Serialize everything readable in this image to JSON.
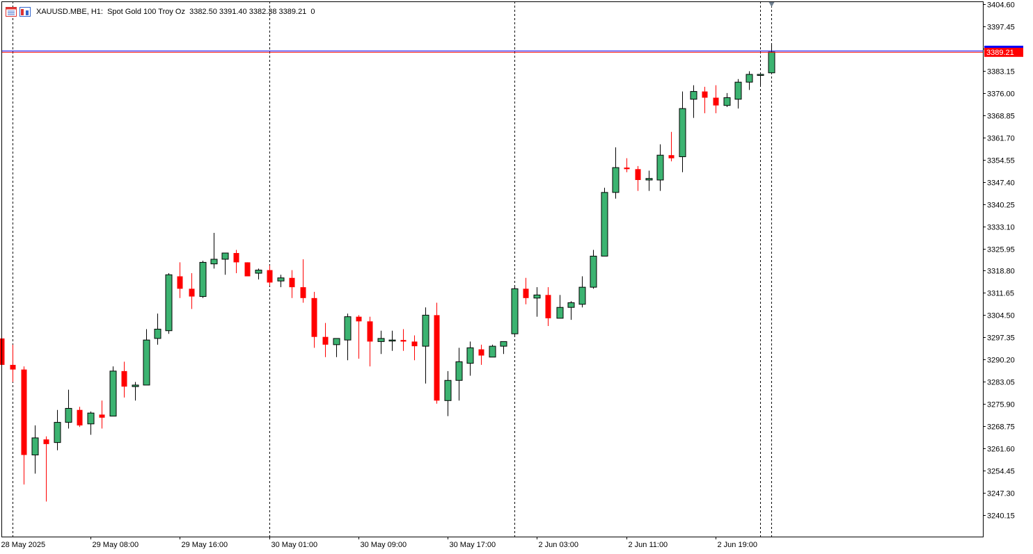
{
  "header": {
    "symbol_line": "XAUUSD.MBE, H1:  Spot Gold 100 Troy Oz  3382.50 3391.40 3382.38 3389.21  0",
    "icons": [
      "chart-window-icon",
      "trade-panel-icon"
    ]
  },
  "colors": {
    "bull": "#3cb371",
    "bear": "#ff0000",
    "outline": "#000000",
    "price_line": "#0000ff",
    "price_line2": "#ff0000",
    "price_tag_bg": "#ff0000",
    "price_tag_text": "#ffffff",
    "grid_separator": "#000000"
  },
  "chart_data": {
    "type": "candlestick",
    "title": "XAUUSD.MBE, H1:  Spot Gold 100 Troy Oz",
    "ylim": [
      3233.5,
      3404.6
    ],
    "y_ticks": [
      "3404.60",
      "3397.45",
      "3390.30",
      "3383.15",
      "3376.00",
      "3368.85",
      "3361.70",
      "3354.55",
      "3347.40",
      "3340.25",
      "3333.10",
      "3325.95",
      "3318.80",
      "3311.65",
      "3304.50",
      "3297.35",
      "3290.20",
      "3283.05",
      "3275.90",
      "3268.75",
      "3261.60",
      "3254.45",
      "3247.30",
      "3240.15"
    ],
    "x_labels": [
      {
        "label": "28 May 2025",
        "index": -0.2
      },
      {
        "label": "29 May 08:00",
        "index": 8
      },
      {
        "label": "29 May 16:00",
        "index": 16
      },
      {
        "label": "30 May 01:00",
        "index": 24
      },
      {
        "label": "30 May 09:00",
        "index": 32
      },
      {
        "label": "30 May 17:00",
        "index": 40
      },
      {
        "label": "2 Jun 03:00",
        "index": 48
      },
      {
        "label": "2 Jun 11:00",
        "index": 56
      },
      {
        "label": "2 Jun 19:00",
        "index": 64
      }
    ],
    "day_separators": [
      1,
      24,
      46,
      68
    ],
    "current_price": "3389.21",
    "candles": [
      {
        "o": 3297.0,
        "h": 3297.5,
        "l": 3288.5,
        "c": 3288.5
      },
      {
        "o": 3288.5,
        "h": 3295.0,
        "l": 3283.0,
        "c": 3287.0
      },
      {
        "o": 3287.0,
        "h": 3288.0,
        "l": 3250.0,
        "c": 3259.5
      },
      {
        "o": 3259.5,
        "h": 3269.0,
        "l": 3253.5,
        "c": 3265.0
      },
      {
        "o": 3264.5,
        "h": 3265.5,
        "l": 3244.5,
        "c": 3263.0
      },
      {
        "o": 3263.5,
        "h": 3274.0,
        "l": 3261.0,
        "c": 3270.0
      },
      {
        "o": 3270.0,
        "h": 3280.5,
        "l": 3268.0,
        "c": 3274.5
      },
      {
        "o": 3274.0,
        "h": 3275.0,
        "l": 3268.5,
        "c": 3269.0
      },
      {
        "o": 3269.5,
        "h": 3273.5,
        "l": 3266.0,
        "c": 3273.0
      },
      {
        "o": 3272.5,
        "h": 3277.0,
        "l": 3268.0,
        "c": 3271.5
      },
      {
        "o": 3272.0,
        "h": 3288.0,
        "l": 3272.0,
        "c": 3286.5
      },
      {
        "o": 3286.5,
        "h": 3289.5,
        "l": 3278.0,
        "c": 3281.5
      },
      {
        "o": 3281.5,
        "h": 3283.0,
        "l": 3277.0,
        "c": 3282.0
      },
      {
        "o": 3282.0,
        "h": 3300.0,
        "l": 3282.0,
        "c": 3296.5
      },
      {
        "o": 3297.0,
        "h": 3305.0,
        "l": 3295.0,
        "c": 3300.0
      },
      {
        "o": 3299.5,
        "h": 3318.0,
        "l": 3298.5,
        "c": 3317.5
      },
      {
        "o": 3317.0,
        "h": 3321.5,
        "l": 3310.0,
        "c": 3313.0
      },
      {
        "o": 3313.0,
        "h": 3318.0,
        "l": 3306.5,
        "c": 3310.5
      },
      {
        "o": 3310.5,
        "h": 3322.0,
        "l": 3310.0,
        "c": 3321.5
      },
      {
        "o": 3321.0,
        "h": 3331.0,
        "l": 3319.5,
        "c": 3322.5
      },
      {
        "o": 3322.5,
        "h": 3324.5,
        "l": 3317.5,
        "c": 3324.5
      },
      {
        "o": 3324.5,
        "h": 3325.5,
        "l": 3318.0,
        "c": 3321.5
      },
      {
        "o": 3321.5,
        "h": 3321.5,
        "l": 3317.0,
        "c": 3317.0
      },
      {
        "o": 3318.0,
        "h": 3319.5,
        "l": 3316.0,
        "c": 3319.0
      },
      {
        "o": 3319.0,
        "h": 3320.5,
        "l": 3314.0,
        "c": 3315.0
      },
      {
        "o": 3315.5,
        "h": 3317.5,
        "l": 3313.5,
        "c": 3316.5
      },
      {
        "o": 3316.5,
        "h": 3319.0,
        "l": 3310.0,
        "c": 3313.5
      },
      {
        "o": 3313.5,
        "h": 3322.5,
        "l": 3308.5,
        "c": 3310.0
      },
      {
        "o": 3310.0,
        "h": 3312.0,
        "l": 3294.0,
        "c": 3297.5
      },
      {
        "o": 3297.5,
        "h": 3302.0,
        "l": 3291.0,
        "c": 3295.0
      },
      {
        "o": 3295.0,
        "h": 3297.0,
        "l": 3291.0,
        "c": 3297.0
      },
      {
        "o": 3296.5,
        "h": 3305.0,
        "l": 3290.0,
        "c": 3304.0
      },
      {
        "o": 3304.0,
        "h": 3304.5,
        "l": 3290.5,
        "c": 3302.5
      },
      {
        "o": 3302.5,
        "h": 3304.0,
        "l": 3288.0,
        "c": 3296.0
      },
      {
        "o": 3296.0,
        "h": 3299.5,
        "l": 3292.0,
        "c": 3297.0
      },
      {
        "o": 3296.5,
        "h": 3299.5,
        "l": 3293.0,
        "c": 3296.5
      },
      {
        "o": 3296.5,
        "h": 3300.0,
        "l": 3293.0,
        "c": 3296.0
      },
      {
        "o": 3296.0,
        "h": 3298.0,
        "l": 3290.0,
        "c": 3294.5
      },
      {
        "o": 3294.5,
        "h": 3307.0,
        "l": 3282.5,
        "c": 3304.5
      },
      {
        "o": 3304.5,
        "h": 3308.5,
        "l": 3276.0,
        "c": 3277.0
      },
      {
        "o": 3277.0,
        "h": 3286.5,
        "l": 3272.0,
        "c": 3283.5
      },
      {
        "o": 3283.5,
        "h": 3294.0,
        "l": 3277.0,
        "c": 3289.5
      },
      {
        "o": 3289.0,
        "h": 3296.0,
        "l": 3285.0,
        "c": 3294.0
      },
      {
        "o": 3293.5,
        "h": 3295.0,
        "l": 3288.5,
        "c": 3291.5
      },
      {
        "o": 3291.0,
        "h": 3295.0,
        "l": 3291.0,
        "c": 3294.5
      },
      {
        "o": 3294.5,
        "h": 3296.0,
        "l": 3292.0,
        "c": 3296.0
      },
      {
        "o": 3298.5,
        "h": 3314.0,
        "l": 3297.5,
        "c": 3313.0
      },
      {
        "o": 3313.0,
        "h": 3316.5,
        "l": 3308.0,
        "c": 3310.0
      },
      {
        "o": 3310.0,
        "h": 3313.5,
        "l": 3304.0,
        "c": 3311.0
      },
      {
        "o": 3311.0,
        "h": 3313.5,
        "l": 3301.0,
        "c": 3303.5
      },
      {
        "o": 3303.5,
        "h": 3311.0,
        "l": 3303.5,
        "c": 3307.0
      },
      {
        "o": 3307.0,
        "h": 3309.0,
        "l": 3303.0,
        "c": 3308.5
      },
      {
        "o": 3308.0,
        "h": 3317.0,
        "l": 3307.0,
        "c": 3313.5
      },
      {
        "o": 3313.5,
        "h": 3325.5,
        "l": 3313.0,
        "c": 3323.5
      },
      {
        "o": 3323.5,
        "h": 3345.5,
        "l": 3323.5,
        "c": 3344.0
      },
      {
        "o": 3344.0,
        "h": 3358.5,
        "l": 3342.0,
        "c": 3352.0
      },
      {
        "o": 3352.0,
        "h": 3355.0,
        "l": 3350.5,
        "c": 3351.5
      },
      {
        "o": 3351.5,
        "h": 3352.5,
        "l": 3344.5,
        "c": 3348.0
      },
      {
        "o": 3348.0,
        "h": 3351.0,
        "l": 3344.5,
        "c": 3348.5
      },
      {
        "o": 3348.0,
        "h": 3359.5,
        "l": 3344.5,
        "c": 3356.0
      },
      {
        "o": 3356.0,
        "h": 3363.5,
        "l": 3354.0,
        "c": 3355.0
      },
      {
        "o": 3355.5,
        "h": 3376.5,
        "l": 3350.5,
        "c": 3371.0
      },
      {
        "o": 3374.0,
        "h": 3378.5,
        "l": 3368.0,
        "c": 3376.5
      },
      {
        "o": 3376.5,
        "h": 3378.0,
        "l": 3369.5,
        "c": 3374.5
      },
      {
        "o": 3374.5,
        "h": 3378.5,
        "l": 3369.5,
        "c": 3372.0
      },
      {
        "o": 3372.0,
        "h": 3376.0,
        "l": 3371.5,
        "c": 3374.5
      },
      {
        "o": 3374.0,
        "h": 3380.5,
        "l": 3371.0,
        "c": 3379.5
      },
      {
        "o": 3379.5,
        "h": 3383.0,
        "l": 3377.0,
        "c": 3382.0
      },
      {
        "o": 3382.0,
        "h": 3382.5,
        "l": 3378.0,
        "c": 3382.0
      },
      {
        "o": 3382.5,
        "h": 3391.4,
        "l": 3382.38,
        "c": 3389.21
      }
    ]
  }
}
